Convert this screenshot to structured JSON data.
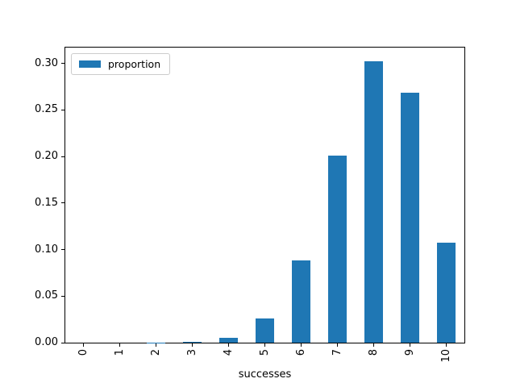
{
  "chart_data": {
    "type": "bar",
    "title": "",
    "xlabel": "successes",
    "ylabel": "",
    "categories": [
      "0",
      "1",
      "2",
      "3",
      "4",
      "5",
      "6",
      "7",
      "8",
      "9",
      "10"
    ],
    "values": [
      0.0,
      0.0,
      0.0001,
      0.0008,
      0.0055,
      0.0264,
      0.0881,
      0.2013,
      0.302,
      0.2684,
      0.1074
    ],
    "series": [
      {
        "name": "proportion",
        "values": [
          0.0,
          0.0,
          0.0001,
          0.0008,
          0.0055,
          0.0264,
          0.0881,
          0.2013,
          0.302,
          0.2684,
          0.1074
        ]
      }
    ],
    "yticks": [
      0.0,
      0.05,
      0.1,
      0.15,
      0.2,
      0.25,
      0.3
    ],
    "ytick_labels": [
      "0.00",
      "0.05",
      "0.10",
      "0.15",
      "0.20",
      "0.25",
      "0.30"
    ],
    "ylim": [
      0,
      0.317
    ],
    "grid": false,
    "legend": {
      "position": "upper left",
      "entries": [
        "proportion"
      ]
    },
    "colors": {
      "bar": "#1f77b4",
      "spine": "#000000",
      "legend_border": "#cccccc",
      "text": "#000000",
      "background": "#ffffff"
    }
  }
}
